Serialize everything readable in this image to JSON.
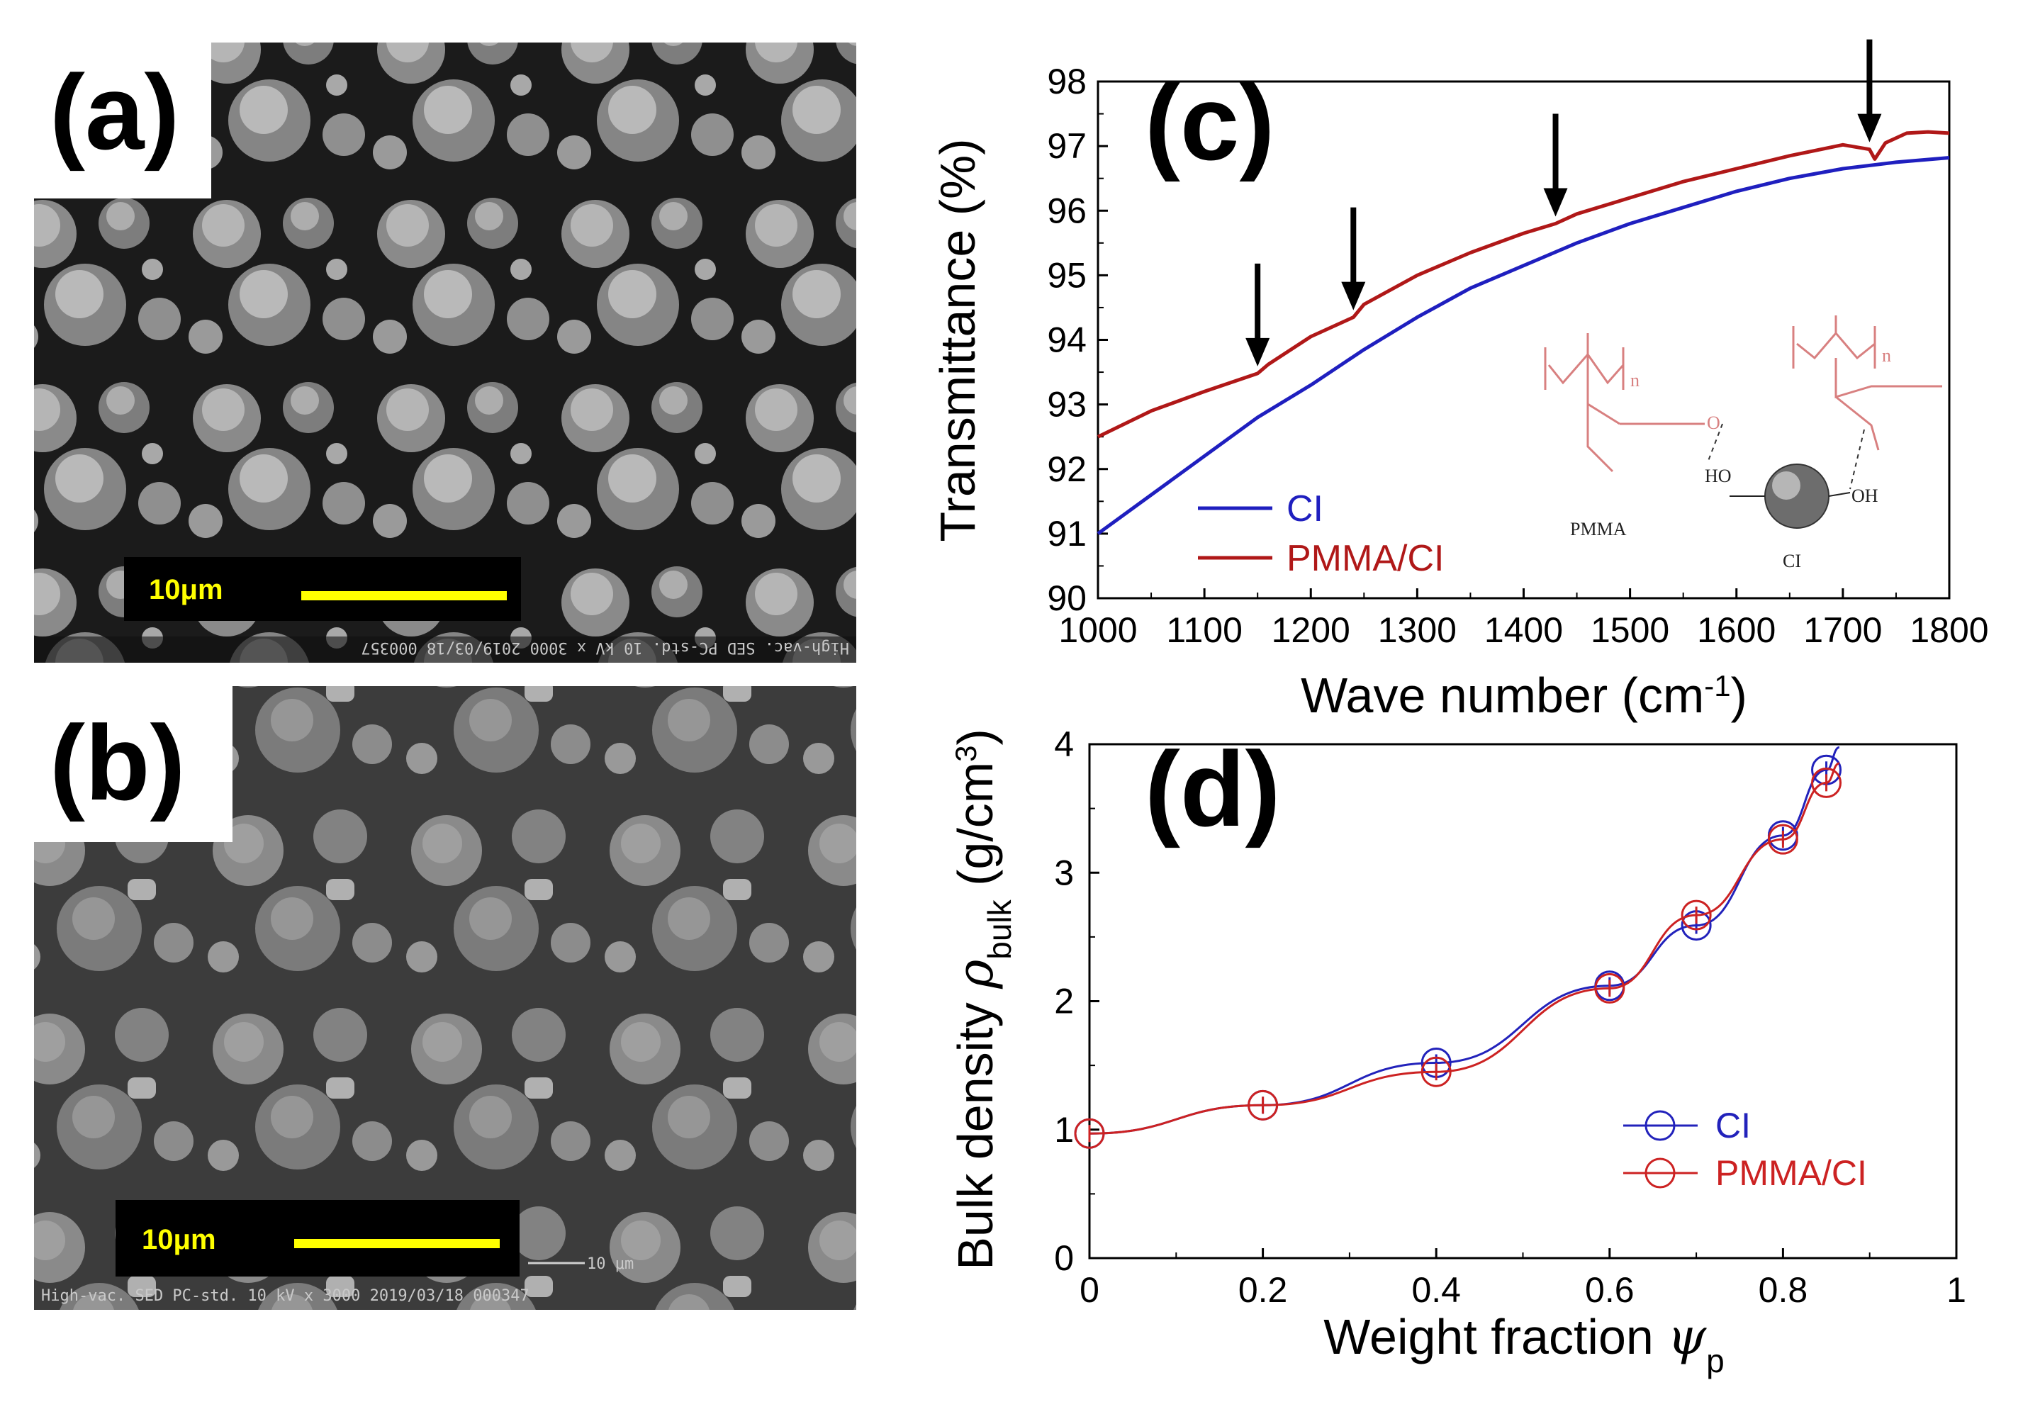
{
  "figure": {
    "panels": {
      "a": {
        "label": "(a)",
        "scale_bar": "10μm",
        "sem_info": "High-vac.   SED   PC-std.   10 kV   x 3000   2019/03/18   000357"
      },
      "b": {
        "label": "(b)",
        "scale_bar": "10μm",
        "micro_bar": "10 μm",
        "sem_info": "High-vac.   SED   PC-std.   10 kV   x 3000   2019/03/18   000347"
      }
    }
  },
  "chart_data": [
    {
      "panel": "(c)",
      "type": "line",
      "xlabel": "Wave number (cm",
      "xlabel_sup": "-1",
      "xlabel_close": ")",
      "ylabel": "Transmittance (%)",
      "xlim": [
        1000,
        1800
      ],
      "ylim": [
        90,
        98
      ],
      "xticks": [
        "1000",
        "1100",
        "1200",
        "1300",
        "1400",
        "1500",
        "1600",
        "1700",
        "1800"
      ],
      "yticks": [
        "90",
        "91",
        "92",
        "93",
        "94",
        "95",
        "96",
        "97",
        "98"
      ],
      "series": [
        {
          "name": "CI",
          "color": "#1f1fbf",
          "x": [
            1000,
            1050,
            1100,
            1150,
            1200,
            1250,
            1300,
            1350,
            1400,
            1450,
            1500,
            1550,
            1600,
            1650,
            1700,
            1750,
            1800
          ],
          "y": [
            91.0,
            91.6,
            92.2,
            92.8,
            93.3,
            93.85,
            94.35,
            94.8,
            95.15,
            95.5,
            95.8,
            96.05,
            96.3,
            96.5,
            96.65,
            96.75,
            96.82
          ]
        },
        {
          "name": "PMMA/CI",
          "color": "#b01818",
          "x": [
            1000,
            1050,
            1100,
            1150,
            1160,
            1200,
            1240,
            1250,
            1300,
            1350,
            1400,
            1430,
            1450,
            1500,
            1550,
            1600,
            1650,
            1700,
            1725,
            1730,
            1740,
            1760,
            1780,
            1800
          ],
          "y": [
            92.5,
            92.9,
            93.2,
            93.48,
            93.62,
            94.05,
            94.35,
            94.55,
            95.0,
            95.35,
            95.65,
            95.8,
            95.95,
            96.2,
            96.45,
            96.65,
            96.85,
            97.02,
            96.95,
            96.8,
            97.05,
            97.2,
            97.22,
            97.2
          ]
        }
      ],
      "arrows_at_x": [
        1150,
        1240,
        1430,
        1725
      ],
      "inset": {
        "pmma": "PMMA",
        "ci": "CI",
        "ho": "HO",
        "oh": "OH",
        "n1": "n",
        "n2": "n",
        "o": "O"
      }
    },
    {
      "panel": "(d)",
      "type": "scatter",
      "xlabel": "Weight fraction ",
      "xlabel_symbol": "ψ",
      "xlabel_sub": "p",
      "ylabel": "Bulk density ",
      "ylabel_symbol": "ρ",
      "ylabel_sub": "bulk",
      "ylabel_unit": " (g/cm",
      "ylabel_sup": "3",
      "ylabel_close": ")",
      "xlim": [
        0,
        1
      ],
      "ylim": [
        0,
        4
      ],
      "xticks": [
        "0",
        "0.2",
        "0.4",
        "0.6",
        "0.8",
        "1"
      ],
      "yticks": [
        "0",
        "1",
        "2",
        "3",
        "4"
      ],
      "series": [
        {
          "name": "CI",
          "color": "#2222bb",
          "x": [
            0,
            0.2,
            0.4,
            0.6,
            0.7,
            0.8,
            0.85
          ],
          "y": [
            0.97,
            1.19,
            1.52,
            2.12,
            2.59,
            3.29,
            3.8
          ]
        },
        {
          "name": "PMMA/CI",
          "color": "#cc2222",
          "x": [
            0,
            0.2,
            0.4,
            0.6,
            0.7,
            0.8,
            0.85
          ],
          "y": [
            0.97,
            1.19,
            1.45,
            2.1,
            2.67,
            3.26,
            3.7
          ]
        }
      ]
    }
  ]
}
